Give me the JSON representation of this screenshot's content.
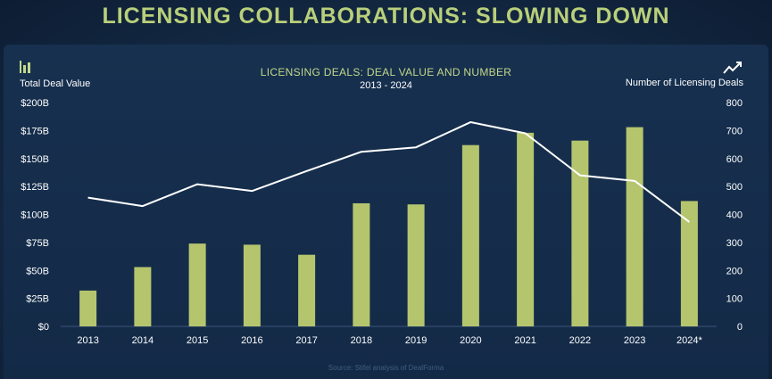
{
  "slide_title": "LICENSING COLLABORATIONS: SLOWING DOWN",
  "source": "Source: Stifel analysis of DealForma",
  "icons": {
    "left": "bar-chart-icon",
    "right": "trend-line-icon"
  },
  "colors": {
    "bar": "#b5c56e",
    "line": "#ffffff",
    "title": "#b9cf7a"
  },
  "chart_data": {
    "type": "bar+line",
    "title": "LICENSING DEALS: DEAL VALUE AND NUMBER",
    "subtitle": "2013 - 2024",
    "y_left_label": "Total Deal Value",
    "y_right_label": "Number of Licensing Deals",
    "categories": [
      "2013",
      "2014",
      "2015",
      "2016",
      "2017",
      "2018",
      "2019",
      "2020",
      "2021",
      "2022",
      "2023",
      "2024*"
    ],
    "y_left_ticks": [
      "$0",
      "$25B",
      "$50B",
      "$75B",
      "$100B",
      "$125B",
      "$150B",
      "$175B",
      "$200B"
    ],
    "y_right_ticks": [
      "0",
      "100",
      "200",
      "300",
      "400",
      "500",
      "600",
      "700",
      "800"
    ],
    "y_left_range": [
      0,
      200
    ],
    "y_right_range": [
      0,
      800
    ],
    "series": [
      {
        "name": "Total Deal Value ($B)",
        "type": "bar",
        "axis": "left",
        "values": [
          32,
          53,
          74,
          73,
          64,
          110,
          109,
          162,
          173,
          166,
          178,
          112
        ]
      },
      {
        "name": "Number of Licensing Deals",
        "type": "line",
        "axis": "right",
        "values": [
          460,
          430,
          508,
          484,
          555,
          624,
          640,
          730,
          690,
          540,
          520,
          373
        ]
      }
    ]
  }
}
